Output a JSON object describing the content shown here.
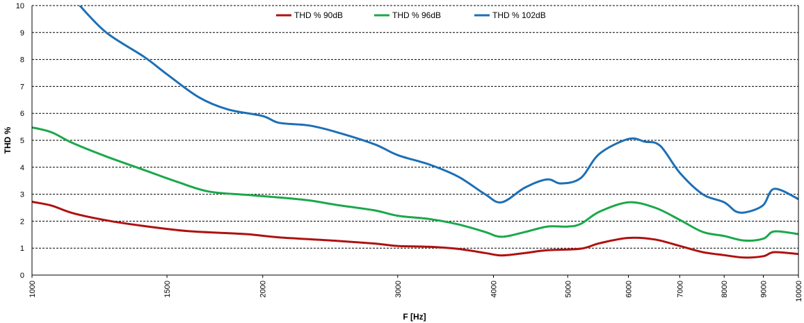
{
  "chart_data": {
    "type": "line",
    "xlabel": "F [Hz]",
    "ylabel": "THD %",
    "xscale": "log",
    "xlim": [
      1000,
      10000
    ],
    "ylim": [
      0,
      10
    ],
    "x_ticks": [
      "1000",
      "1500",
      "2000",
      "3000",
      "4000",
      "5000",
      "6000",
      "7000",
      "8000",
      "9000",
      "10000"
    ],
    "y_ticks": [
      "0",
      "1",
      "2",
      "3",
      "4",
      "5",
      "6",
      "7",
      "8",
      "9",
      "10"
    ],
    "grid": "horizontal dashed",
    "legend_position": "top",
    "series": [
      {
        "name": "THD % 90dB",
        "color": "#b01010",
        "x": [
          1000,
          1060,
          1130,
          1250,
          1400,
          1600,
          1900,
          2100,
          2500,
          2800,
          3000,
          3300,
          3600,
          3900,
          4100,
          4400,
          4700,
          5200,
          5500,
          6000,
          6500,
          7000,
          7500,
          8000,
          8500,
          9000,
          9300,
          10000
        ],
        "y": [
          2.72,
          2.58,
          2.3,
          2.03,
          1.82,
          1.63,
          1.52,
          1.4,
          1.27,
          1.17,
          1.08,
          1.05,
          0.97,
          0.82,
          0.73,
          0.82,
          0.92,
          0.98,
          1.18,
          1.38,
          1.32,
          1.08,
          0.85,
          0.74,
          0.65,
          0.7,
          0.85,
          0.78
        ]
      },
      {
        "name": "THD % 96dB",
        "color": "#1aa84a",
        "x": [
          1000,
          1060,
          1130,
          1250,
          1400,
          1550,
          1700,
          1900,
          2100,
          2300,
          2500,
          2800,
          3000,
          3300,
          3600,
          3900,
          4100,
          4400,
          4700,
          5000,
          5200,
          5500,
          6000,
          6500,
          7000,
          7500,
          8000,
          8500,
          9000,
          9300,
          10000
        ],
        "y": [
          5.48,
          5.3,
          4.9,
          4.4,
          3.9,
          3.45,
          3.1,
          2.98,
          2.88,
          2.77,
          2.6,
          2.4,
          2.2,
          2.08,
          1.88,
          1.6,
          1.42,
          1.6,
          1.8,
          1.8,
          1.9,
          2.35,
          2.7,
          2.5,
          2.05,
          1.6,
          1.45,
          1.28,
          1.35,
          1.62,
          1.52
        ]
      },
      {
        "name": "THD % 102dB",
        "color": "#1c6fb6",
        "x": [
          1150,
          1250,
          1400,
          1500,
          1650,
          1800,
          2000,
          2100,
          2300,
          2500,
          2800,
          3000,
          3300,
          3600,
          3900,
          4100,
          4400,
          4700,
          4900,
          5200,
          5500,
          6000,
          6300,
          6600,
          7000,
          7500,
          8000,
          8300,
          8600,
          9000,
          9300,
          10000
        ],
        "y": [
          10.05,
          9.0,
          8.1,
          7.45,
          6.6,
          6.15,
          5.9,
          5.65,
          5.55,
          5.3,
          4.85,
          4.45,
          4.1,
          3.65,
          3.0,
          2.7,
          3.25,
          3.55,
          3.4,
          3.6,
          4.5,
          5.05,
          4.95,
          4.8,
          3.8,
          3.0,
          2.7,
          2.35,
          2.35,
          2.6,
          3.2,
          2.82
        ]
      }
    ]
  }
}
